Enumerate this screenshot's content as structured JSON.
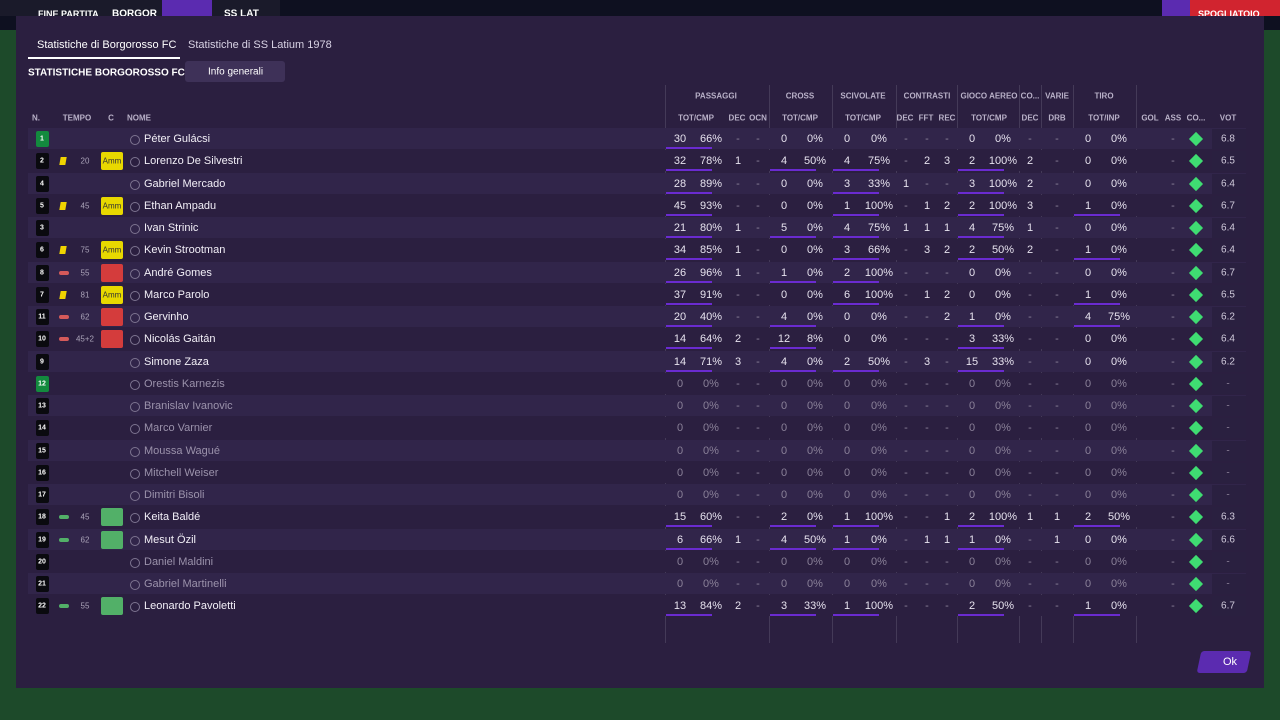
{
  "topbar": {
    "status": "FINE PARTITA",
    "home": "BORGOR",
    "away": "SS LAT",
    "button": "SPOGLIATOIO"
  },
  "tabs": [
    "Statistiche di Borgorosso FC",
    "Statistiche di SS Latium 1978"
  ],
  "section_title": "STATISTICHE BORGOROSSO FC",
  "dropdown": "Info generali",
  "group_headers": [
    "PASSAGGI",
    "CROSS",
    "SCIVOLATE",
    "CONTRASTI",
    "GIOCO AEREO",
    "CO...",
    "VARIE",
    "TIRO"
  ],
  "column_headers": [
    "N.",
    "TEMPO",
    "C",
    "NOME",
    "TOT/CMP",
    "DEC",
    "OCN",
    "TOT/CMP",
    "TOT/CMP",
    "DEC",
    "FFT",
    "REC",
    "TOT/CMP",
    "DEC",
    "DRB",
    "TOT/INP",
    "GOL",
    "ASS",
    "CO...",
    "VOT"
  ],
  "table": {
    "rows": [
      [
        "1",
        null,
        null,
        "Péter Gulácsi",
        "30",
        "66%",
        "-",
        "-",
        "0",
        "0%",
        "0",
        "0%",
        "-",
        "-",
        "-",
        "0",
        "0%",
        "-",
        "-",
        "0",
        "0%",
        null,
        "-",
        "6.8"
      ],
      [
        "2",
        "20",
        "Amm",
        "Lorenzo De Silvestri",
        "32",
        "78%",
        "1",
        "-",
        "4",
        "50%",
        "4",
        "75%",
        "-",
        "2",
        "3",
        "2",
        "100%",
        "2",
        "-",
        "0",
        "0%",
        null,
        "-",
        "6.5"
      ],
      [
        "4",
        null,
        null,
        "Gabriel Mercado",
        "28",
        "89%",
        "-",
        "-",
        "0",
        "0%",
        "3",
        "33%",
        "1",
        "-",
        "-",
        "3",
        "100%",
        "2",
        "-",
        "0",
        "0%",
        null,
        "-",
        "6.4"
      ],
      [
        "5",
        "45",
        "Amm",
        "Ethan Ampadu",
        "45",
        "93%",
        "-",
        "-",
        "0",
        "0%",
        "1",
        "100%",
        "-",
        "1",
        "2",
        "2",
        "100%",
        "3",
        "-",
        "1",
        "0%",
        null,
        "-",
        "6.7"
      ],
      [
        "3",
        null,
        null,
        "Ivan Strinic",
        "21",
        "80%",
        "1",
        "-",
        "5",
        "0%",
        "4",
        "75%",
        "1",
        "1",
        "1",
        "4",
        "75%",
        "1",
        "-",
        "0",
        "0%",
        null,
        "-",
        "6.4"
      ],
      [
        "6",
        "75",
        "Amm",
        "Kevin Strootman",
        "34",
        "85%",
        "1",
        "-",
        "0",
        "0%",
        "3",
        "66%",
        "-",
        "3",
        "2",
        "2",
        "50%",
        "2",
        "-",
        "1",
        "0%",
        null,
        "-",
        "6.4"
      ],
      [
        "8",
        "55",
        null,
        "André Gomes",
        "26",
        "96%",
        "1",
        "-",
        "1",
        "0%",
        "2",
        "100%",
        "-",
        "-",
        "-",
        "0",
        "0%",
        "-",
        "-",
        "0",
        "0%",
        null,
        "-",
        "6.7"
      ],
      [
        "7",
        "81",
        "Amm",
        "Marco Parolo",
        "37",
        "91%",
        "-",
        "-",
        "0",
        "0%",
        "6",
        "100%",
        "-",
        "1",
        "2",
        "0",
        "0%",
        "-",
        "-",
        "1",
        "0%",
        null,
        "-",
        "6.5"
      ],
      [
        "11",
        "62",
        null,
        "Gervinho",
        "20",
        "40%",
        "-",
        "-",
        "4",
        "0%",
        "0",
        "0%",
        "-",
        "-",
        "2",
        "1",
        "0%",
        "-",
        "-",
        "4",
        "75%",
        null,
        "-",
        "6.2"
      ],
      [
        "10",
        "45+2",
        null,
        "Nicolás Gaitán",
        "14",
        "64%",
        "2",
        "-",
        "12",
        "8%",
        "0",
        "0%",
        "-",
        "-",
        "-",
        "3",
        "33%",
        "-",
        "-",
        "0",
        "0%",
        null,
        "-",
        "6.4"
      ],
      [
        "9",
        null,
        null,
        "Simone Zaza",
        "14",
        "71%",
        "3",
        "-",
        "4",
        "0%",
        "2",
        "50%",
        "-",
        "3",
        "-",
        "15",
        "33%",
        "-",
        "-",
        "0",
        "0%",
        null,
        "-",
        "6.2"
      ],
      [
        "12",
        null,
        null,
        "Orestis Karnezis",
        "0",
        "0%",
        "-",
        "-",
        "0",
        "0%",
        "0",
        "0%",
        "-",
        "-",
        "-",
        "0",
        "0%",
        "-",
        "-",
        "0",
        "0%",
        null,
        "-",
        "-"
      ],
      [
        "13",
        null,
        null,
        "Branislav Ivanovic",
        "0",
        "0%",
        "-",
        "-",
        "0",
        "0%",
        "0",
        "0%",
        "-",
        "-",
        "-",
        "0",
        "0%",
        "-",
        "-",
        "0",
        "0%",
        null,
        "-",
        "-"
      ],
      [
        "14",
        null,
        null,
        "Marco Varnier",
        "0",
        "0%",
        "-",
        "-",
        "0",
        "0%",
        "0",
        "0%",
        "-",
        "-",
        "-",
        "0",
        "0%",
        "-",
        "-",
        "0",
        "0%",
        null,
        "-",
        "-"
      ],
      [
        "15",
        null,
        null,
        "Moussa Wagué",
        "0",
        "0%",
        "-",
        "-",
        "0",
        "0%",
        "0",
        "0%",
        "-",
        "-",
        "-",
        "0",
        "0%",
        "-",
        "-",
        "0",
        "0%",
        null,
        "-",
        "-"
      ],
      [
        "16",
        null,
        null,
        "Mitchell Weiser",
        "0",
        "0%",
        "-",
        "-",
        "0",
        "0%",
        "0",
        "0%",
        "-",
        "-",
        "-",
        "0",
        "0%",
        "-",
        "-",
        "0",
        "0%",
        null,
        "-",
        "-"
      ],
      [
        "17",
        null,
        null,
        "Dimitri Bisoli",
        "0",
        "0%",
        "-",
        "-",
        "0",
        "0%",
        "0",
        "0%",
        "-",
        "-",
        "-",
        "0",
        "0%",
        "-",
        "-",
        "0",
        "0%",
        null,
        "-",
        "-"
      ],
      [
        "18",
        "45",
        null,
        "Keita Baldé",
        "15",
        "60%",
        "-",
        "-",
        "2",
        "0%",
        "1",
        "100%",
        "-",
        "-",
        "1",
        "2",
        "100%",
        "1",
        "1",
        "2",
        "50%",
        null,
        "-",
        "6.3"
      ],
      [
        "19",
        "62",
        null,
        "Mesut Özil",
        "6",
        "66%",
        "1",
        "-",
        "4",
        "50%",
        "1",
        "0%",
        "-",
        "1",
        "1",
        "1",
        "0%",
        "-",
        "1",
        "0",
        "0%",
        null,
        "-",
        "6.6"
      ],
      [
        "20",
        null,
        null,
        "Daniel Maldini",
        "0",
        "0%",
        "-",
        "-",
        "0",
        "0%",
        "0",
        "0%",
        "-",
        "-",
        "-",
        "0",
        "0%",
        "-",
        "-",
        "0",
        "0%",
        null,
        "-",
        "-"
      ],
      [
        "21",
        null,
        null,
        "Gabriel Martinelli",
        "0",
        "0%",
        "-",
        "-",
        "0",
        "0%",
        "0",
        "0%",
        "-",
        "-",
        "-",
        "0",
        "0%",
        "-",
        "-",
        "0",
        "0%",
        null,
        "-",
        "-"
      ],
      [
        "22",
        "55",
        null,
        "Leonardo Pavoletti",
        "13",
        "84%",
        "2",
        "-",
        "3",
        "33%",
        "1",
        "100%",
        "-",
        "-",
        "-",
        "2",
        "50%",
        "-",
        "-",
        "1",
        "0%",
        null,
        "-",
        "6.7"
      ]
    ]
  },
  "ok_button": "Ok"
}
